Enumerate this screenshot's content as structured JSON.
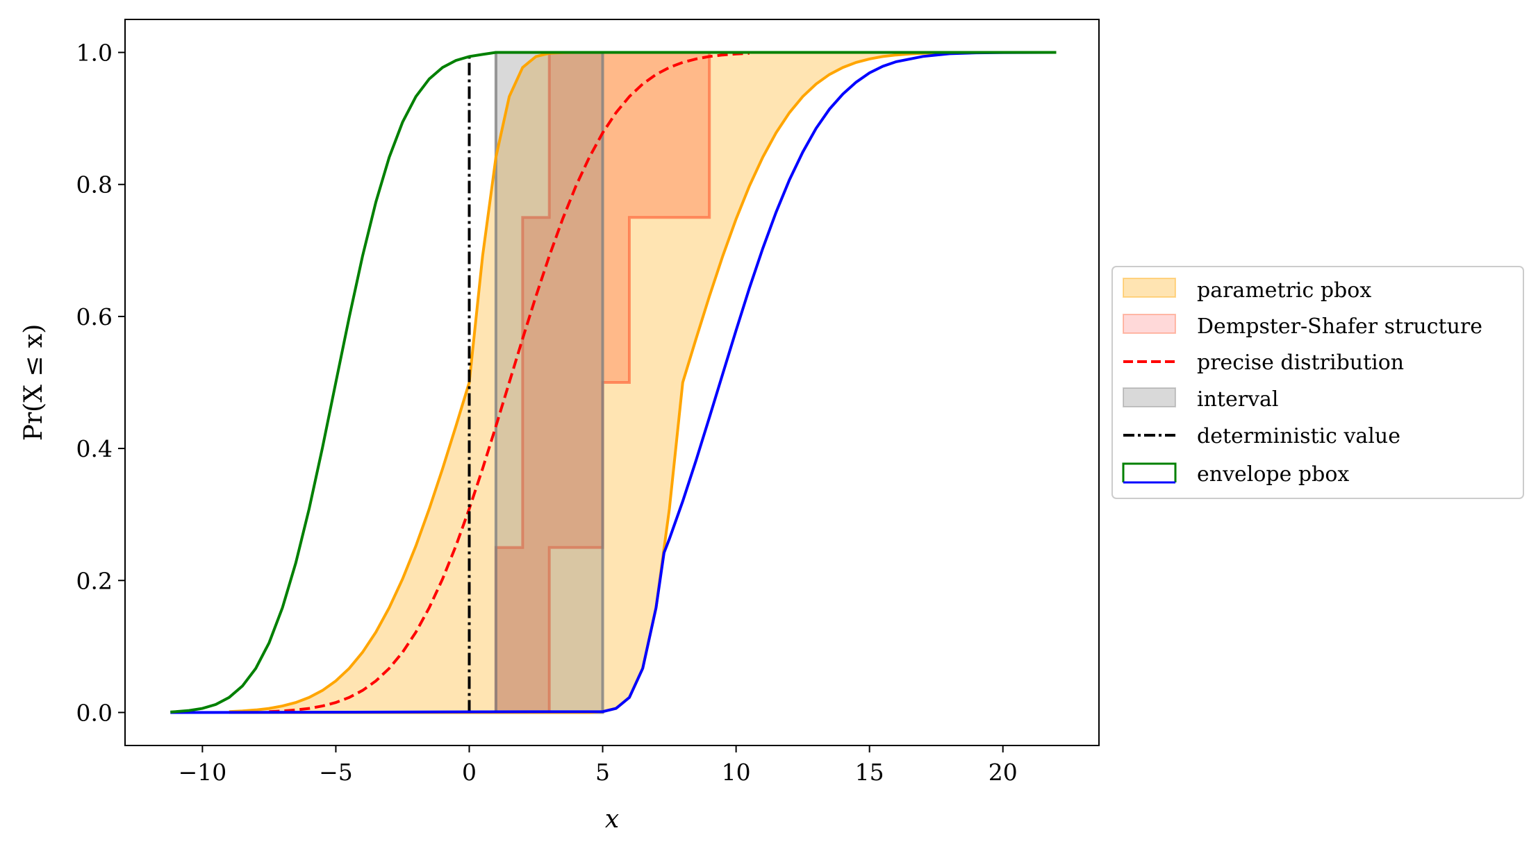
{
  "chart_data": {
    "type": "line",
    "title": "",
    "xlabel": "x",
    "ylabel": "Pr(X ≤ x)",
    "xlim": [
      -12.9,
      23.6
    ],
    "ylim": [
      -0.05,
      1.05
    ],
    "xticks": [
      -10,
      -5,
      0,
      5,
      10,
      15,
      20
    ],
    "xtick_labels": [
      "−10",
      "−5",
      "0",
      "5",
      "10",
      "15",
      "20"
    ],
    "yticks": [
      0,
      0.2,
      0.4,
      0.6,
      0.8,
      1.0
    ],
    "ytick_labels": [
      "0.0",
      "0.2",
      "0.4",
      "0.6",
      "0.8",
      "1.0"
    ],
    "grid": false,
    "legend_position": "outside-right",
    "series": [
      {
        "name": "parametric pbox",
        "kind": "band",
        "color": "#ffa500",
        "x": [
          -9,
          -8.5,
          -8,
          -7.5,
          -7,
          -6.5,
          -6,
          -5.5,
          -5,
          -4.5,
          -4,
          -3.5,
          -3,
          -2.5,
          -2,
          -1.5,
          -1,
          -0.5,
          0,
          0.5,
          1,
          1.5,
          2,
          2.5,
          3,
          3.5,
          4,
          4.5,
          5,
          5.5,
          6,
          6.5,
          7,
          7.5,
          8,
          8.5,
          9,
          9.5,
          10,
          10.5,
          11,
          11.5,
          12,
          12.5,
          13,
          13.5,
          14,
          14.5,
          15,
          15.5,
          16,
          16.5,
          17,
          17.5
        ],
        "upper": [
          0.0013,
          0.0023,
          0.0038,
          0.0062,
          0.0098,
          0.0151,
          0.0228,
          0.0334,
          0.0478,
          0.0668,
          0.0912,
          0.1217,
          0.1587,
          0.2023,
          0.2525,
          0.3085,
          0.3694,
          0.4338,
          0.5,
          0.6915,
          0.8413,
          0.9332,
          0.9772,
          0.9938,
          0.9987,
          0.9998,
          1,
          1,
          1,
          1,
          1,
          1,
          1,
          1,
          1,
          1,
          1,
          1,
          1,
          1,
          1,
          1,
          1,
          1,
          1,
          1,
          1,
          1,
          1,
          1,
          1,
          1,
          1,
          1
        ],
        "lower": [
          0,
          0,
          0,
          0,
          0,
          0,
          0,
          0,
          0,
          0,
          0,
          0,
          0,
          0,
          0,
          0,
          0,
          0,
          0,
          0,
          0,
          0,
          0,
          0,
          0,
          0,
          0,
          0,
          0.0013,
          0.0062,
          0.0228,
          0.0668,
          0.1587,
          0.3085,
          0.5,
          0.5662,
          0.6306,
          0.6915,
          0.7475,
          0.7977,
          0.8413,
          0.8783,
          0.9088,
          0.9332,
          0.9522,
          0.9666,
          0.9772,
          0.9849,
          0.9902,
          0.9938,
          0.9962,
          0.9977,
          0.9987,
          0.9992
        ]
      },
      {
        "name": "Dempster-Shafer structure",
        "kind": "step-band",
        "color": "#ff6a3d",
        "focal_elements": [
          [
            1,
            3
          ],
          [
            2,
            5
          ],
          [
            2,
            6
          ],
          [
            3,
            9
          ]
        ],
        "masses": [
          0.25,
          0.25,
          0.25,
          0.25
        ]
      },
      {
        "name": "precise distribution",
        "kind": "line",
        "color": "#ff0000",
        "style": "dashed",
        "x": [
          -7.5,
          -7,
          -6.5,
          -6,
          -5.5,
          -5,
          -4.5,
          -4,
          -3.5,
          -3,
          -2.5,
          -2,
          -1.5,
          -1,
          -0.5,
          0,
          0.5,
          1,
          1.5,
          2,
          2.5,
          3,
          3.5,
          4,
          4.5,
          5,
          5.5,
          6,
          6.5,
          7,
          7.5,
          8,
          8.5,
          9,
          9.5,
          10,
          10.5
        ],
        "y": [
          0.0013,
          0.0023,
          0.0038,
          0.0062,
          0.0098,
          0.0151,
          0.0228,
          0.0334,
          0.0478,
          0.0668,
          0.0912,
          0.1217,
          0.1587,
          0.2023,
          0.2525,
          0.3085,
          0.3694,
          0.4338,
          0.5,
          0.5662,
          0.6306,
          0.6915,
          0.7475,
          0.7977,
          0.8413,
          0.8783,
          0.9088,
          0.9332,
          0.9522,
          0.9666,
          0.9772,
          0.9849,
          0.9902,
          0.9938,
          0.9962,
          0.9977,
          0.9987
        ]
      },
      {
        "name": "interval",
        "kind": "interval",
        "color": "#808080",
        "interval": [
          1,
          5
        ]
      },
      {
        "name": "deterministic value",
        "kind": "vline",
        "color": "#000000",
        "style": "dashdot",
        "value": 0
      },
      {
        "name": "envelope pbox",
        "kind": "envelope",
        "upper_color": "#008000",
        "lower_color": "#0000ff",
        "upper_x": [
          -11.2,
          -11,
          -10.5,
          -10,
          -9.5,
          -9,
          -8.5,
          -8,
          -7.5,
          -7,
          -6.5,
          -6,
          -5.5,
          -5,
          -4.5,
          -4,
          -3.5,
          -3,
          -2.5,
          -2,
          -1.5,
          -1,
          -0.5,
          0,
          0.5,
          1,
          22
        ],
        "upper_y": [
          0.0008,
          0.0013,
          0.003,
          0.0062,
          0.0122,
          0.0228,
          0.0401,
          0.0668,
          0.1056,
          0.1587,
          0.2266,
          0.3085,
          0.4013,
          0.5,
          0.5987,
          0.6915,
          0.7734,
          0.8413,
          0.8944,
          0.9332,
          0.9599,
          0.9772,
          0.9878,
          0.9938,
          0.997,
          1,
          1
        ],
        "lower_x": [
          -11.2,
          5,
          5.5,
          6,
          6.5,
          7,
          7.3,
          7.5,
          8,
          8.5,
          9,
          9.5,
          10,
          10.5,
          11,
          11.5,
          12,
          12.5,
          13,
          13.5,
          14,
          14.5,
          15,
          15.5,
          16,
          17,
          18,
          19,
          20,
          22
        ],
        "lower_y": [
          0,
          0.0013,
          0.0062,
          0.0228,
          0.0668,
          0.1587,
          0.242,
          0.263,
          0.32,
          0.382,
          0.447,
          0.513,
          0.579,
          0.643,
          0.703,
          0.758,
          0.807,
          0.849,
          0.885,
          0.914,
          0.937,
          0.955,
          0.969,
          0.979,
          0.986,
          0.994,
          0.998,
          0.9994,
          0.9998,
          1
        ]
      }
    ],
    "legend": [
      "parametric pbox",
      "Dempster-Shafer structure",
      "precise distribution",
      "interval",
      "deterministic value",
      "envelope pbox"
    ]
  }
}
